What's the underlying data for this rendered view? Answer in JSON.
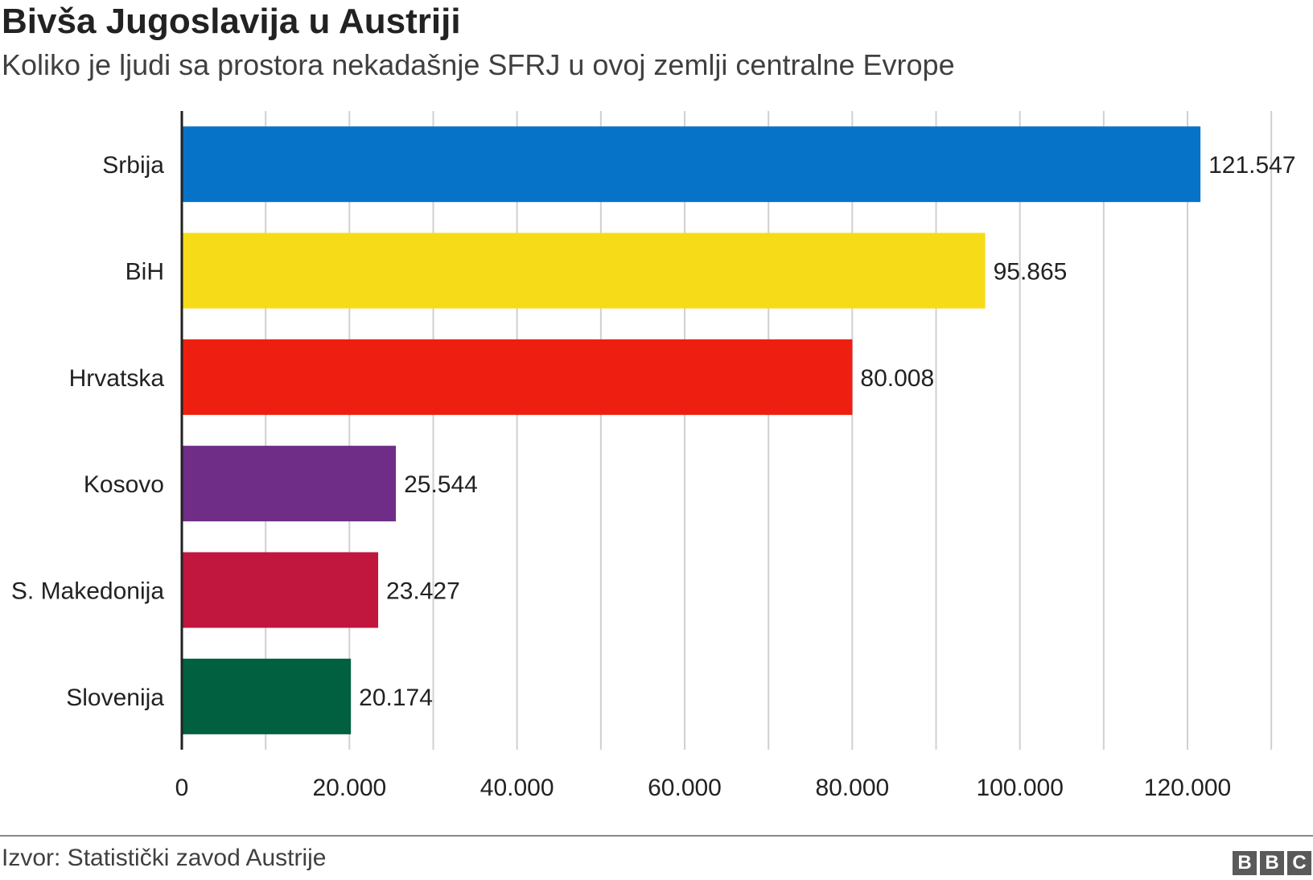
{
  "header": {
    "title": "Bivša Jugoslavija u Austriji",
    "subtitle": "Koliko je ljudi sa prostora nekadašnje SFRJ u ovoj zemlji centralne Evrope"
  },
  "chart_data": {
    "type": "bar",
    "orientation": "horizontal",
    "title": "Bivša Jugoslavija u Austriji",
    "subtitle": "Koliko je ljudi sa prostora nekadašnje SFRJ u ovoj zemlji centralne Evrope",
    "categories": [
      "Srbija",
      "BiH",
      "Hrvatska",
      "Kosovo",
      "S. Makedonija",
      "Slovenija"
    ],
    "values": [
      121547,
      95865,
      80008,
      25544,
      23427,
      20174
    ],
    "value_labels": [
      "121.547",
      "95.865",
      "80.008",
      "25.544",
      "23.427",
      "20.174"
    ],
    "colors": [
      "#0673c9",
      "#f6dc18",
      "#ee1f10",
      "#6f2d87",
      "#c1163e",
      "#006040"
    ],
    "xlim": [
      0,
      130000
    ],
    "xticks": [
      0,
      20000,
      40000,
      60000,
      80000,
      100000,
      120000
    ],
    "xtick_labels": [
      "0",
      "20.000",
      "40.000",
      "60.000",
      "80.000",
      "100.000",
      "120.000"
    ],
    "gridlines": "vertical",
    "legend": "none"
  },
  "footer": {
    "source": "Izvor: Statistički zavod Austrije",
    "logo_letters": [
      "B",
      "B",
      "C"
    ]
  }
}
